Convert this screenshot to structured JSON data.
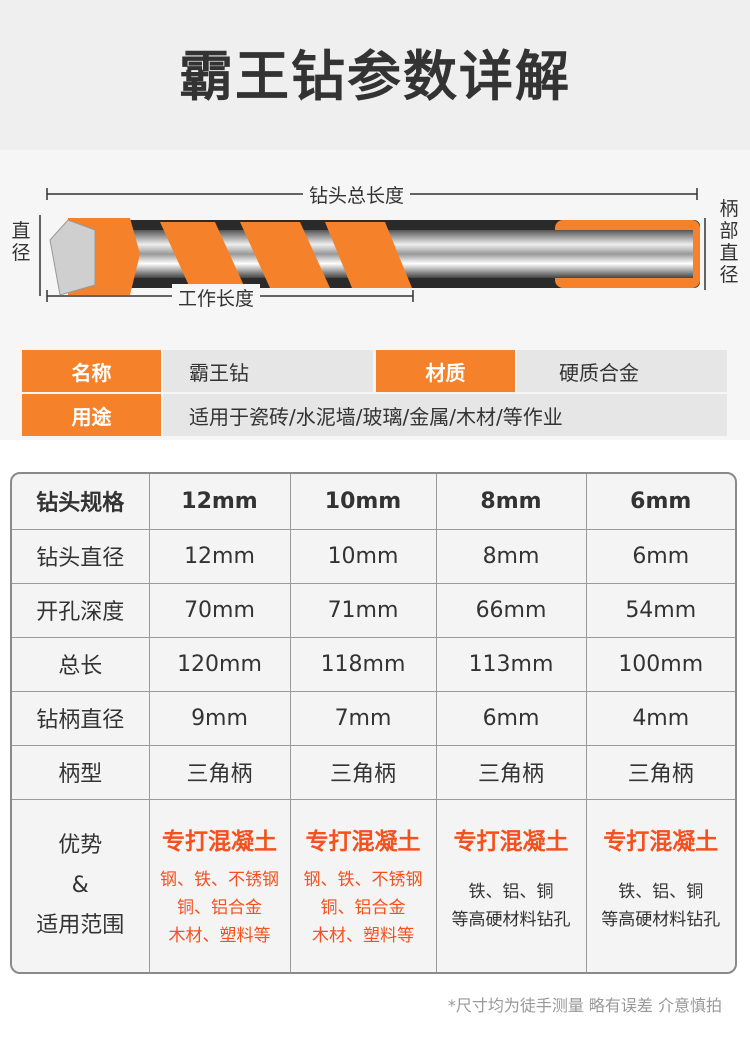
{
  "title": "霸王钻参数详解",
  "diagram": {
    "total_length": "钻头总长度",
    "working_length": "工作长度",
    "diameter": "直径",
    "shank_diameter": "柄部直径"
  },
  "info": {
    "name_label": "名称",
    "name_value": "霸王钻",
    "material_label": "材质",
    "material_value": "硬质合金",
    "use_label": "用途",
    "use_value": "适用于瓷砖/水泥墙/玻璃/金属/木材/等作业"
  },
  "spec_table": {
    "header": [
      "钻头规格",
      "12mm",
      "10mm",
      "8mm",
      "6mm"
    ],
    "rows": [
      [
        "钻头直径",
        "12mm",
        "10mm",
        "8mm",
        "6mm"
      ],
      [
        "开孔深度",
        "70mm",
        "71mm",
        "66mm",
        "54mm"
      ],
      [
        "总长",
        "120mm",
        "118mm",
        "113mm",
        "100mm"
      ],
      [
        "钻柄直径",
        "9mm",
        "7mm",
        "6mm",
        "4mm"
      ],
      [
        "柄型",
        "三角柄",
        "三角柄",
        "三角柄",
        "三角柄"
      ]
    ],
    "advantage_label": [
      "优势",
      "&",
      "适用范围"
    ],
    "advantage": [
      {
        "title": "专打混凝土",
        "lines": [
          "钢、铁、不锈钢",
          "铜、铝合金",
          "木材、塑料等"
        ]
      },
      {
        "title": "专打混凝土",
        "lines": [
          "钢、铁、不锈钢",
          "铜、铝合金",
          "木材、塑料等"
        ]
      },
      {
        "title": "专打混凝土",
        "lines": [
          "铁、铝、铜",
          "等高硬材料钻孔"
        ]
      },
      {
        "title": "专打混凝土",
        "lines": [
          "铁、铝、铜",
          "等高硬材料钻孔"
        ]
      }
    ]
  },
  "footnote": "*尺寸均为徒手测量 略有误差 介意慎拍",
  "colors": {
    "accent": "#f5822a",
    "highlight_text": "#f4511e"
  }
}
